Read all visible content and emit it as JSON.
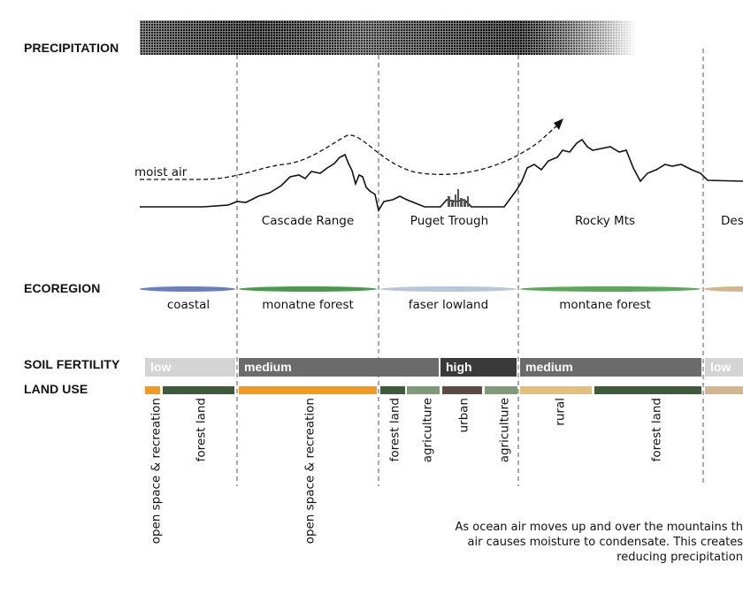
{
  "labels": {
    "precipitation": "PRECIPITATION",
    "ecoregion": "ECOREGION",
    "soil_fertility": "SOIL FERTILITY",
    "land_use": "LAND USE",
    "moist_air": "moist air"
  },
  "regions": [
    "Cascade Range",
    "Puget Trough",
    "Rocky Mts",
    "Des"
  ],
  "ecoregions": [
    {
      "label": "coastal",
      "color": "#6b7fbf"
    },
    {
      "label": "monatne forest",
      "color": "#4a9a4e"
    },
    {
      "label": "faser lowland",
      "color": "#b8c6da"
    },
    {
      "label": "montane forest",
      "color": "#5aa85a"
    },
    {
      "label": "",
      "color": "#d2b58c"
    }
  ],
  "soil_fertility": [
    {
      "label": "low",
      "color": "#d4d4d4"
    },
    {
      "label": "medium",
      "color": "#6b6b6b"
    },
    {
      "label": "high",
      "color": "#3a3a3a"
    },
    {
      "label": "medium",
      "color": "#6b6b6b"
    },
    {
      "label": "low",
      "color": "#d4d4d4"
    }
  ],
  "land_use": [
    {
      "label": "open space & recreation",
      "color": "#f39a1e"
    },
    {
      "label": "forest land",
      "color": "#3d5a3a"
    },
    {
      "label": "open space & recreation",
      "color": "#f39a1e"
    },
    {
      "label": "forest land",
      "color": "#3d5a3a"
    },
    {
      "label": "agriculture",
      "color": "#7e9a78"
    },
    {
      "label": "urban",
      "color": "#5d4a45"
    },
    {
      "label": "agriculture",
      "color": "#7e9a78"
    },
    {
      "label": "rural",
      "color": "#e3bf7a"
    },
    {
      "label": "forest land",
      "color": "#3d5a3a"
    },
    {
      "label": "",
      "color": "#d2b58c"
    }
  ],
  "caption": [
    "As ocean air moves up and over the mountains th",
    "air causes moisture to condensate. This creates",
    "reducing precipitation"
  ]
}
